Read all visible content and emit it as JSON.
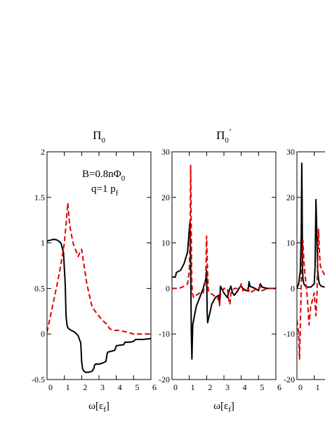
{
  "chart_data": [
    {
      "type": "line",
      "title": "Π",
      "title_sub": "0",
      "title_prime": "",
      "xlabel": "ω[ε",
      "xlabel_sub": "f",
      "xlabel_close": "]",
      "xlim": [
        0,
        6
      ],
      "ylim": [
        -0.5,
        2
      ],
      "xticks": [
        0,
        1,
        2,
        3,
        4,
        5,
        6
      ],
      "yticks": [
        -0.5,
        0,
        0.5,
        1,
        1.5,
        2
      ],
      "yticklabels": [
        "-0.5",
        "0",
        "0.5",
        "1",
        "1.5",
        "2"
      ],
      "annotations": [
        {
          "text": "B=0.8nΦ",
          "sub": "0"
        },
        {
          "text": "q=1 p",
          "sub": "f"
        }
      ],
      "series": [
        {
          "style": "solid",
          "color": "#000000",
          "x": [
            0,
            0.2,
            0.4,
            0.6,
            0.8,
            0.95,
            1.05,
            1.1,
            1.15,
            1.2,
            1.3,
            1.4,
            1.6,
            1.8,
            1.95,
            2.0,
            2.05,
            2.1,
            2.2,
            2.4,
            2.6,
            2.7,
            2.75,
            2.8,
            3.0,
            3.2,
            3.4,
            3.45,
            3.5,
            3.7,
            3.9,
            3.95,
            4.0,
            4.3,
            4.4,
            4.45,
            4.5,
            4.8,
            5.0,
            5.05,
            5.1,
            5.5,
            6.0
          ],
          "y": [
            1.02,
            1.03,
            1.04,
            1.03,
            1.0,
            0.9,
            0.55,
            0.2,
            0.1,
            0.07,
            0.05,
            0.04,
            0.02,
            -0.02,
            -0.1,
            -0.3,
            -0.38,
            -0.4,
            -0.42,
            -0.42,
            -0.41,
            -0.38,
            -0.34,
            -0.33,
            -0.33,
            -0.32,
            -0.3,
            -0.24,
            -0.2,
            -0.19,
            -0.18,
            -0.16,
            -0.13,
            -0.12,
            -0.12,
            -0.11,
            -0.09,
            -0.09,
            -0.08,
            -0.07,
            -0.06,
            -0.06,
            -0.05
          ]
        },
        {
          "style": "dashed",
          "color": "#dd0000",
          "x": [
            0,
            0.2,
            0.4,
            0.6,
            0.8,
            1.0,
            1.1,
            1.2,
            1.3,
            1.5,
            1.7,
            1.8,
            1.9,
            2.0,
            2.1,
            2.3,
            2.5,
            2.6,
            2.7,
            2.9,
            3.2,
            3.5,
            3.6,
            3.7,
            3.9,
            4.1,
            4.4,
            4.6,
            5.0,
            5.5,
            6.0
          ],
          "y": [
            0.02,
            0.2,
            0.38,
            0.56,
            0.76,
            1.0,
            1.2,
            1.44,
            1.2,
            1.0,
            0.9,
            0.85,
            0.9,
            0.93,
            0.8,
            0.55,
            0.38,
            0.3,
            0.27,
            0.22,
            0.15,
            0.1,
            0.06,
            0.05,
            0.04,
            0.04,
            0.03,
            0.02,
            0.0,
            0.0,
            0.0
          ]
        }
      ]
    },
    {
      "type": "line",
      "title": "Π",
      "title_sub": "0",
      "title_prime": "’",
      "xlabel": "ω[ε",
      "xlabel_sub": "f",
      "xlabel_close": "]",
      "xlim": [
        0,
        6
      ],
      "ylim": [
        -20,
        30
      ],
      "xticks": [
        0,
        1,
        2,
        3,
        4,
        5,
        6
      ],
      "yticks": [
        -20,
        -10,
        0,
        10,
        20,
        30
      ],
      "yticklabels": [
        "-20",
        "-10",
        "0",
        "10",
        "20",
        "30"
      ],
      "series": [
        {
          "style": "solid",
          "color": "#000000",
          "x": [
            0,
            0.2,
            0.25,
            0.5,
            0.7,
            0.9,
            1.0,
            1.05,
            1.08,
            1.12,
            1.15,
            1.2,
            1.4,
            1.6,
            1.8,
            1.95,
            2.0,
            2.03,
            2.06,
            2.15,
            2.3,
            2.5,
            2.7,
            2.75,
            2.8,
            3.0,
            3.2,
            3.3,
            3.4,
            3.5,
            3.6,
            3.8,
            3.9,
            4.0,
            4.1,
            4.3,
            4.4,
            4.45,
            4.5,
            4.8,
            5.0,
            5.1,
            5.2,
            5.5,
            6.0
          ],
          "y": [
            2.5,
            2.5,
            3.5,
            4,
            5.5,
            8,
            13,
            15,
            5,
            -10,
            -15.5,
            -8,
            -4,
            -2,
            0,
            2,
            4,
            -5,
            -7.5,
            -6,
            -3.5,
            -2,
            -1.5,
            -3.5,
            0.5,
            -1,
            -2,
            -0.5,
            0.5,
            -1,
            -1.5,
            -0.5,
            0.2,
            0.5,
            0,
            -0.5,
            -0.5,
            1.5,
            0.5,
            0,
            -0.5,
            1.0,
            0.3,
            0,
            0
          ]
        },
        {
          "style": "dashed",
          "color": "#dd0000",
          "x": [
            0,
            0.4,
            0.7,
            0.9,
            1.0,
            1.05,
            1.08,
            1.11,
            1.14,
            1.18,
            1.25,
            1.4,
            1.6,
            1.8,
            1.95,
            2.0,
            2.05,
            2.1,
            2.2,
            2.4,
            2.6,
            2.7,
            2.75,
            2.8,
            3.0,
            3.2,
            3.3,
            3.35,
            3.4,
            3.6,
            3.9,
            4.0,
            4.1,
            4.3,
            4.4,
            4.5,
            4.7,
            5.0,
            5.1,
            5.2,
            5.5,
            6.0
          ],
          "y": [
            0,
            0,
            0.5,
            1,
            4,
            12,
            27,
            14,
            2,
            -1,
            -2,
            -1.5,
            -1,
            -1,
            2,
            11.5,
            4,
            -0.5,
            -1,
            -1.5,
            -2,
            -2.5,
            -3.8,
            -1.5,
            0,
            0,
            -3,
            -3.5,
            -1,
            0,
            0,
            1,
            -0.5,
            0,
            0,
            -1,
            -0.5,
            0,
            0.5,
            -0.5,
            0,
            0
          ]
        }
      ]
    },
    {
      "type": "line",
      "title": "",
      "xlabel": "",
      "xlim": [
        0,
        6
      ],
      "ylim": [
        -20,
        30
      ],
      "xticks": [
        0,
        1
      ],
      "xticklabels": [
        "0",
        "1"
      ],
      "yticks": [
        -20,
        -10,
        0,
        10,
        20,
        30
      ],
      "yticklabels": [
        "-20",
        "-10",
        "0",
        "10",
        "20",
        "30"
      ],
      "series": [
        {
          "style": "solid",
          "color": "#000000",
          "x": [
            0,
            0.1,
            0.2,
            0.25,
            0.28,
            0.3,
            0.32,
            0.35,
            0.4,
            0.5,
            0.6,
            0.8,
            1.0,
            1.05,
            1.1,
            1.15,
            1.2,
            1.25,
            1.3,
            1.4,
            1.6
          ],
          "y": [
            0,
            1,
            4,
            12,
            27.5,
            20,
            5,
            2,
            1,
            0.5,
            0.3,
            0.3,
            1,
            5,
            19.5,
            12,
            4,
            2,
            1,
            0.5,
            0.3
          ]
        },
        {
          "style": "dashed",
          "color": "#dd0000",
          "x": [
            0,
            0.1,
            0.15,
            0.2,
            0.25,
            0.3,
            0.35,
            0.4,
            0.5,
            0.6,
            0.7,
            0.8,
            1.0,
            1.1,
            1.15,
            1.2,
            1.25,
            1.3,
            1.35,
            1.45,
            1.6
          ],
          "y": [
            -7,
            -10,
            -15.5,
            -8,
            1,
            8,
            10.5,
            6,
            2,
            -2,
            -8,
            -4,
            -1,
            -6,
            -2,
            6,
            13,
            8,
            5,
            4,
            3
          ]
        }
      ]
    }
  ]
}
